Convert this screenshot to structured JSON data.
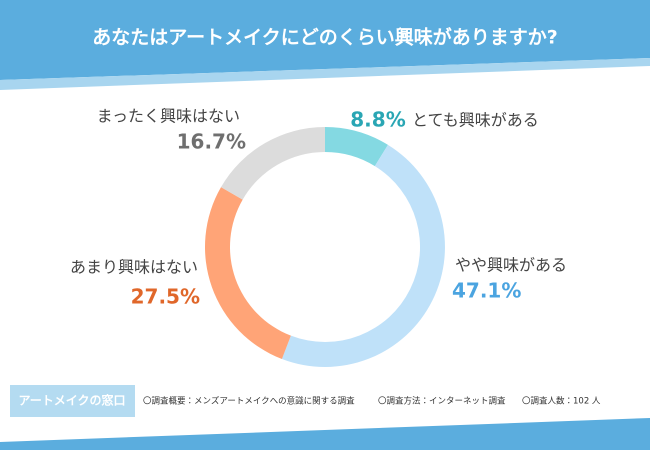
{
  "chart_data": {
    "type": "donut",
    "title": "あなたはアートメイクにどのくらい興味がありますか?",
    "categories": [
      "とても興味がある",
      "やや興味がある",
      "あまり興味はない",
      "まったく興味はない"
    ],
    "values": [
      8.8,
      47.1,
      27.5,
      16.7
    ],
    "value_labels": [
      "8.8%",
      "47.1%",
      "27.5%",
      "16.7%"
    ],
    "colors": [
      "#84d9e2",
      "#bfe1f9",
      "#ffa477",
      "#dcdcdc"
    ],
    "label_colors": [
      "#2aa6b4",
      "#4ba4e0",
      "#e0672a",
      "#6f6f6f"
    ]
  },
  "footer": {
    "badge": "アートメイクの窓口",
    "notes": [
      "〇調査概要：メンズアートメイクへの意識に関する調査",
      "〇調査方法：インターネット調査",
      "〇調査人数：102 人"
    ]
  }
}
